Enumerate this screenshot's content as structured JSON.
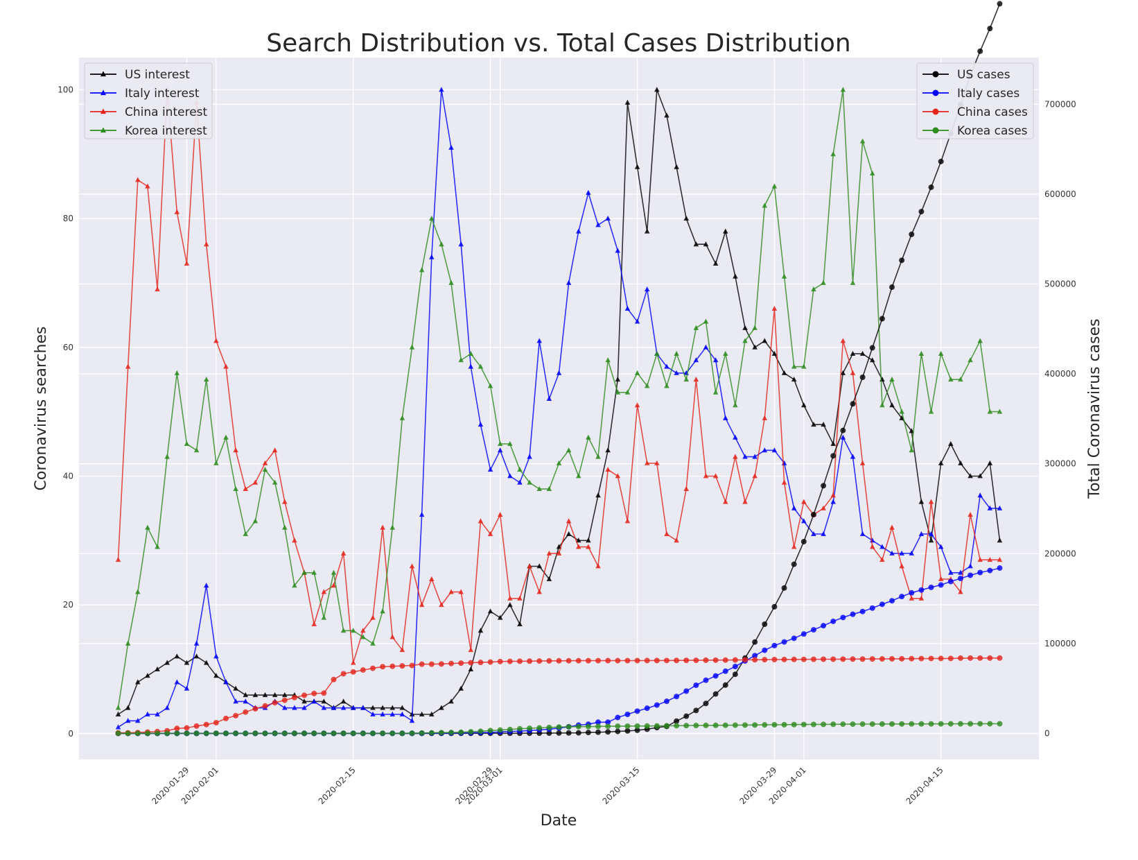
{
  "chart_data": {
    "type": "line",
    "title": "Search Distribution vs. Total Cases Distribution",
    "xlabel": "Date",
    "ylabel_left": "Coronavirus searches",
    "ylabel_right": "Total Coronavirus cases",
    "x_start": "2020-01-22",
    "x_end": "2020-04-21",
    "xlim": [
      "2020-01-18",
      "2020-04-25"
    ],
    "ylim_left": [
      -4,
      105
    ],
    "ylim_right": [
      -29000,
      752000
    ],
    "x_ticks": [
      {
        "date": "2020-01-29",
        "label": "2020-01-29"
      },
      {
        "date": "2020-02-01",
        "label": "2020-02-01"
      },
      {
        "date": "2020-02-15",
        "label": "2020-02-15"
      },
      {
        "date": "2020-02-29",
        "label": "2020-02-29"
      },
      {
        "date": "2020-03-01",
        "label": "2020-03-01"
      },
      {
        "date": "2020-03-15",
        "label": "2020-03-15"
      },
      {
        "date": "2020-03-29",
        "label": "2020-03-29"
      },
      {
        "date": "2020-04-01",
        "label": "2020-04-01"
      },
      {
        "date": "2020-04-15",
        "label": "2020-04-15"
      }
    ],
    "y_ticks_left": [
      0,
      20,
      40,
      60,
      80,
      100
    ],
    "y_ticks_right": [
      0,
      100000,
      200000,
      300000,
      400000,
      500000,
      600000,
      700000
    ],
    "grid": true,
    "legend_left_position": "top-left",
    "legend_right_position": "top-right",
    "series_interest": [
      {
        "name": "US interest",
        "color": "#000000",
        "marker": "triangle",
        "values": [
          3,
          4,
          8,
          9,
          10,
          11,
          12,
          11,
          12,
          11,
          9,
          8,
          7,
          6,
          6,
          6,
          6,
          6,
          6,
          5,
          5,
          5,
          4,
          5,
          4,
          4,
          4,
          4,
          4,
          4,
          3,
          3,
          3,
          4,
          5,
          7,
          10,
          16,
          19,
          18,
          20,
          17,
          26,
          26,
          24,
          29,
          31,
          30,
          30,
          37,
          44,
          55,
          98,
          88,
          78,
          100,
          96,
          88,
          80,
          76,
          76,
          73,
          78,
          71,
          63,
          60,
          61,
          59,
          56,
          55,
          51,
          48,
          48,
          45,
          56,
          59,
          59,
          58,
          55,
          51,
          49,
          47,
          36,
          30,
          42,
          45,
          42,
          40,
          40,
          42,
          30
        ]
      },
      {
        "name": "Italy interest",
        "color": "#0000ff",
        "marker": "triangle",
        "values": [
          1,
          2,
          2,
          3,
          3,
          4,
          8,
          7,
          14,
          23,
          12,
          8,
          5,
          5,
          4,
          4,
          5,
          4,
          4,
          4,
          5,
          4,
          4,
          4,
          4,
          4,
          3,
          3,
          3,
          3,
          2,
          34,
          74,
          100,
          91,
          76,
          57,
          48,
          41,
          44,
          40,
          39,
          43,
          61,
          52,
          56,
          70,
          78,
          84,
          79,
          80,
          75,
          66,
          64,
          69,
          59,
          57,
          56,
          56,
          58,
          60,
          58,
          49,
          46,
          43,
          43,
          44,
          44,
          42,
          35,
          33,
          31,
          31,
          36,
          46,
          43,
          31,
          30,
          29,
          28,
          28,
          28,
          31,
          31,
          29,
          25,
          25,
          26,
          37,
          35,
          35
        ]
      },
      {
        "name": "China interest",
        "color": "#e3241b",
        "marker": "triangle",
        "values": [
          27,
          57,
          86,
          85,
          69,
          100,
          81,
          73,
          98,
          76,
          61,
          57,
          44,
          38,
          39,
          42,
          44,
          36,
          30,
          25,
          17,
          22,
          23,
          28,
          11,
          16,
          18,
          32,
          15,
          13,
          26,
          20,
          24,
          20,
          22,
          22,
          13,
          33,
          31,
          34,
          21,
          21,
          26,
          22,
          28,
          28,
          33,
          29,
          29,
          26,
          41,
          40,
          33,
          51,
          42,
          42,
          31,
          30,
          38,
          55,
          40,
          40,
          36,
          43,
          36,
          40,
          49,
          66,
          39,
          29,
          36,
          34,
          35,
          37,
          61,
          56,
          42,
          29,
          27,
          32,
          26,
          21,
          21,
          36,
          24,
          24,
          22,
          34,
          27,
          27,
          27
        ]
      },
      {
        "name": "Korea interest",
        "color": "#2e8b1e",
        "marker": "triangle",
        "values": [
          4,
          14,
          22,
          32,
          29,
          43,
          56,
          45,
          44,
          55,
          42,
          46,
          38,
          31,
          33,
          41,
          39,
          32,
          23,
          25,
          25,
          18,
          25,
          16,
          16,
          15,
          14,
          19,
          32,
          49,
          60,
          72,
          80,
          76,
          70,
          58,
          59,
          57,
          54,
          45,
          45,
          41,
          39,
          38,
          38,
          42,
          44,
          40,
          46,
          43,
          58,
          53,
          53,
          56,
          54,
          59,
          54,
          59,
          55,
          63,
          64,
          53,
          59,
          51,
          61,
          63,
          82,
          85,
          71,
          57,
          57,
          69,
          70,
          90,
          100,
          70,
          92,
          87,
          51,
          55,
          50,
          44,
          59,
          50,
          59,
          55,
          55,
          58,
          61,
          50,
          50
        ]
      }
    ],
    "series_cases": [
      {
        "name": "US cases",
        "color": "#000000",
        "marker": "circle",
        "values": [
          1,
          1,
          2,
          2,
          5,
          5,
          5,
          5,
          5,
          7,
          8,
          8,
          11,
          11,
          11,
          11,
          11,
          11,
          11,
          11,
          12,
          12,
          13,
          13,
          13,
          13,
          13,
          13,
          13,
          13,
          15,
          15,
          15,
          51,
          51,
          57,
          58,
          60,
          68,
          74,
          98,
          118,
          149,
          217,
          262,
          402,
          518,
          583,
          959,
          1281,
          1663,
          2179,
          2727,
          3499,
          4632,
          6421,
          7786,
          13680,
          19101,
          25493,
          33276,
          43847,
          53740,
          65778,
          83836,
          101657,
          121478,
          140886,
          161807,
          188172,
          213372,
          243453,
          275586,
          308853,
          337072,
          366667,
          396223,
          429052,
          461437,
          496535,
          526396,
          555313,
          580619,
          607670,
          636350,
          667592,
          699706,
          732197,
          759086,
          784326,
          811865
        ]
      },
      {
        "name": "Italy cases",
        "color": "#0000ff",
        "marker": "circle",
        "values": [
          0,
          0,
          0,
          0,
          0,
          0,
          0,
          0,
          0,
          2,
          2,
          2,
          2,
          2,
          2,
          2,
          3,
          3,
          3,
          3,
          3,
          3,
          3,
          3,
          3,
          3,
          3,
          3,
          3,
          3,
          20,
          62,
          155,
          229,
          322,
          453,
          655,
          888,
          1128,
          1694,
          2036,
          2502,
          3089,
          3858,
          4636,
          5883,
          7375,
          9172,
          10149,
          12462,
          12462,
          17660,
          21157,
          24747,
          27980,
          31506,
          35713,
          41035,
          47021,
          53578,
          59138,
          63927,
          69176,
          74386,
          80589,
          86498,
          92472,
          97689,
          101739,
          105792,
          110574,
          115242,
          119827,
          124632,
          128948,
          132547,
          135586,
          139422,
          143626,
          147577,
          152271,
          156363,
          159516,
          162488,
          165155,
          168941,
          172434,
          175925,
          178972,
          181228,
          183957
        ]
      },
      {
        "name": "China cases",
        "color": "#e3241b",
        "marker": "circle",
        "values": [
          548,
          643,
          920,
          1406,
          2075,
          2877,
          5509,
          6087,
          8141,
          9802,
          11891,
          16630,
          19716,
          23707,
          27440,
          30587,
          34110,
          36814,
          39829,
          42354,
          44386,
          44759,
          59895,
          66358,
          68413,
          70513,
          72434,
          74211,
          74619,
          75077,
          75550,
          77001,
          77022,
          77241,
          77754,
          78166,
          78600,
          78928,
          79356,
          79932,
          80136,
          80261,
          80386,
          80537,
          80690,
          80770,
          80823,
          80860,
          80887,
          80921,
          80932,
          80945,
          80977,
          81003,
          81033,
          81058,
          81102,
          81156,
          81250,
          81305,
          81435,
          81498,
          81591,
          81661,
          81782,
          81897,
          81999,
          82122,
          82198,
          82279,
          82361,
          82432,
          82511,
          82543,
          82602,
          82665,
          82718,
          82809,
          82883,
          82941,
          83014,
          83134,
          83213,
          83306,
          83356,
          83403,
          83760,
          83787,
          83805,
          83817,
          83853
        ]
      },
      {
        "name": "Korea cases",
        "color": "#2e8b1e",
        "marker": "circle",
        "values": [
          1,
          1,
          2,
          2,
          3,
          4,
          4,
          4,
          4,
          11,
          12,
          15,
          15,
          16,
          19,
          23,
          24,
          24,
          25,
          27,
          28,
          28,
          28,
          28,
          28,
          29,
          30,
          31,
          31,
          104,
          204,
          433,
          602,
          833,
          977,
          1261,
          1766,
          2337,
          3150,
          3736,
          4335,
          5186,
          5621,
          6088,
          6593,
          7041,
          7314,
          7478,
          7513,
          7755,
          7869,
          7979,
          8086,
          8162,
          8236,
          8320,
          8413,
          8565,
          8652,
          8799,
          8897,
          8961,
          9037,
          9137,
          9241,
          9332,
          9478,
          9583,
          9661,
          9786,
          9887,
          9976,
          10062,
          10156,
          10237,
          10284,
          10331,
          10384,
          10423,
          10450,
          10480,
          10512,
          10537,
          10564,
          10591,
          10613,
          10635,
          10653,
          10661,
          10674,
          10683
        ]
      }
    ]
  }
}
